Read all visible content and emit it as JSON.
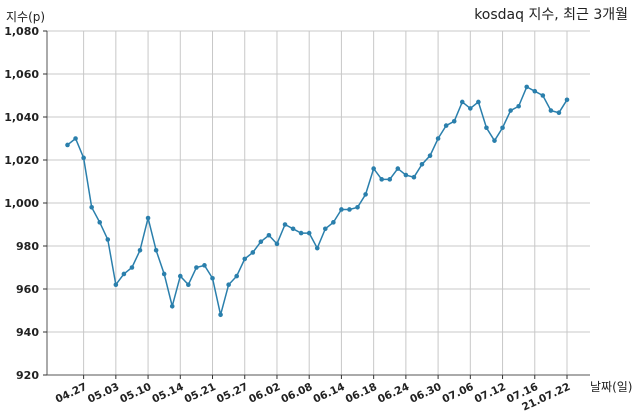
{
  "chart_data": {
    "type": "line",
    "title": "kosdaq 지수, 최근 3개월",
    "ylabel": "지수(p)",
    "xlabel": "날짜(일)",
    "ylim": [
      920,
      1080
    ],
    "y_ticks": [
      "1,080",
      "1,060",
      "1,040",
      "1,020",
      "1,000",
      "980",
      "960",
      "940",
      "920"
    ],
    "x_tick_labels": [
      "04.27",
      "05.03",
      "05.10",
      "05.14",
      "05.21",
      "05.27",
      "06.02",
      "06.08",
      "06.14",
      "06.18",
      "06.24",
      "06.30",
      "07.06",
      "07.12",
      "07.16",
      "21.07.22"
    ],
    "x_tick_index": [
      2,
      6,
      10,
      14,
      18,
      22,
      26,
      30,
      34,
      38,
      42,
      46,
      50,
      54,
      58,
      62
    ],
    "grid": true,
    "series": [
      {
        "color": "#2a7fac",
        "values": [
          1027,
          1030,
          1021,
          998,
          991,
          983,
          962,
          967,
          970,
          978,
          993,
          978,
          967,
          952,
          966,
          962,
          970,
          971,
          965,
          948,
          962,
          966,
          974,
          977,
          982,
          985,
          981,
          990,
          988,
          986,
          986,
          979,
          988,
          991,
          997,
          997,
          998,
          1004,
          1016,
          1011,
          1011,
          1016,
          1013,
          1012,
          1018,
          1022,
          1030,
          1036,
          1038,
          1047,
          1044,
          1047,
          1035,
          1029,
          1035,
          1043,
          1045,
          1054,
          1052,
          1050,
          1043,
          1042,
          1048
        ]
      }
    ]
  }
}
